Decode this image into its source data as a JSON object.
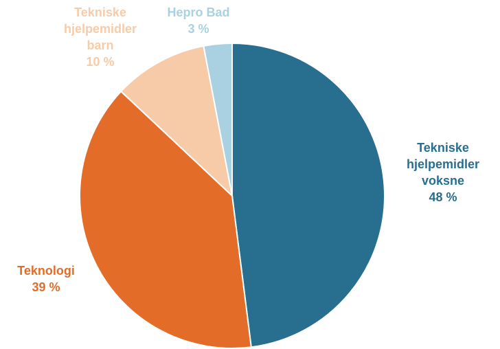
{
  "chart_data": {
    "type": "pie",
    "start_angle_deg": 0,
    "direction": "clockwise",
    "slices": [
      {
        "name_lines": [
          "Tekniske",
          "hjelpemidler",
          "voksne"
        ],
        "value": 48,
        "value_label": "48 %",
        "color": "#286E8E"
      },
      {
        "name_lines": [
          "Teknologi"
        ],
        "value": 39,
        "value_label": "39 %",
        "color": "#E46C29"
      },
      {
        "name_lines": [
          "Tekniske",
          "hjelpemidler",
          "barn"
        ],
        "value": 10,
        "value_label": "10 %",
        "color": "#F7CBA8"
      },
      {
        "name_lines": [
          "Hepro Bad"
        ],
        "value": 3,
        "value_label": "3 %",
        "color": "#A9D1E1"
      }
    ]
  }
}
